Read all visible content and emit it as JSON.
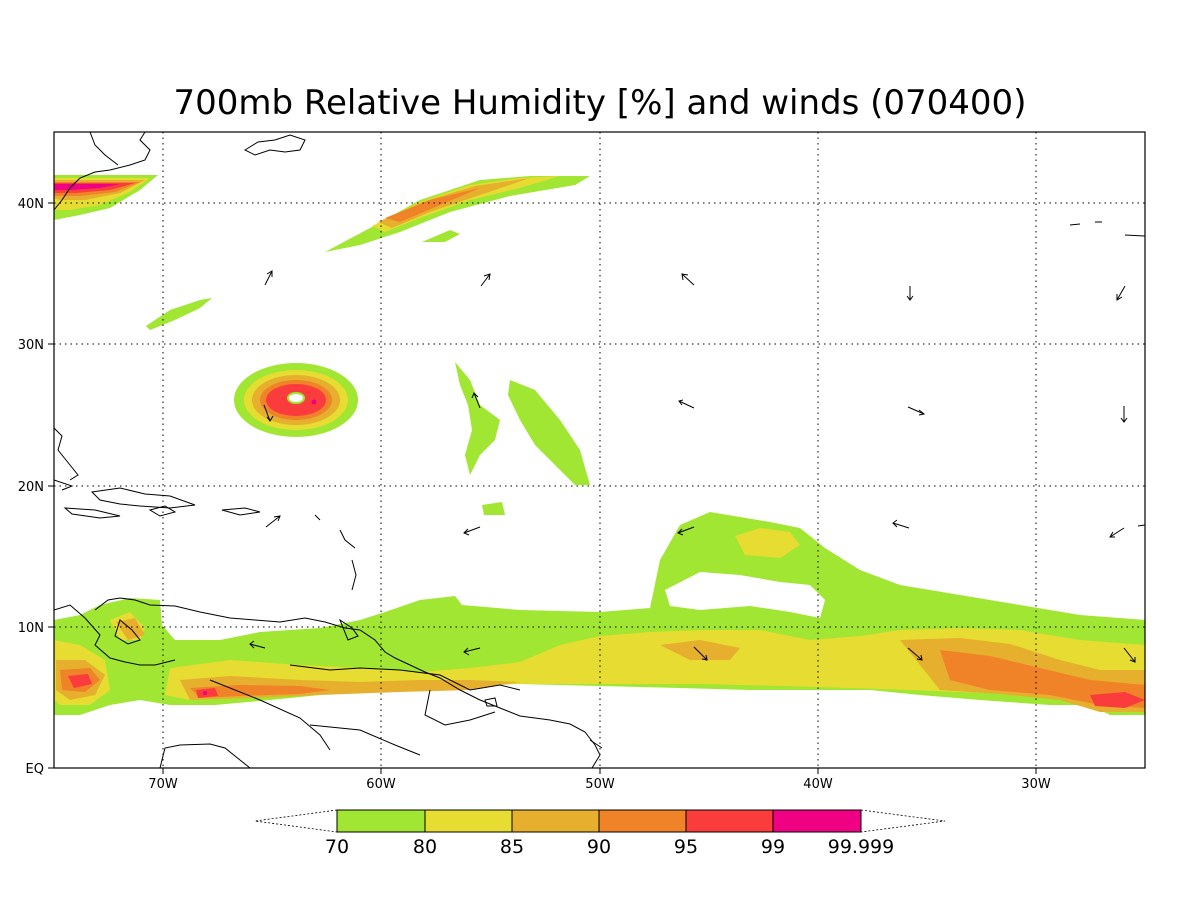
{
  "title": "700mb Relative Humidity [%] and winds (070400)",
  "axes": {
    "x_ticks": [
      "70W",
      "60W",
      "50W",
      "40W",
      "30W"
    ],
    "y_ticks": [
      "EQ",
      "10N",
      "20N",
      "30N",
      "40N"
    ]
  },
  "colorbar": {
    "labels": [
      "70",
      "80",
      "85",
      "90",
      "95",
      "99",
      "99.999"
    ],
    "colors": [
      "#a0e632",
      "#e6dc32",
      "#e6af2d",
      "#f08228",
      "#fa3c3c",
      "#f00082"
    ]
  },
  "map": {
    "extent": {
      "lon": [
        -75,
        -25
      ],
      "lat": [
        0,
        45
      ]
    },
    "grid": true,
    "fields": "700mb relative humidity (%) shaded, wind vectors"
  }
}
